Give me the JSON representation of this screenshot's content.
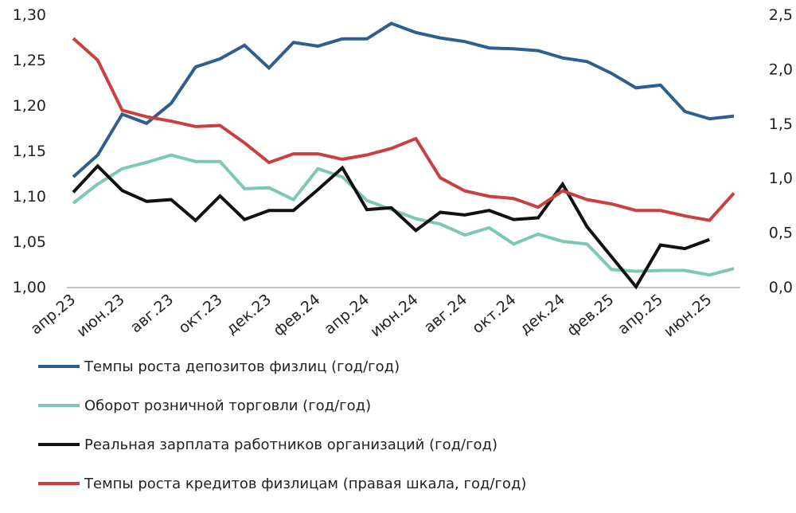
{
  "chart_data": {
    "type": "line",
    "x": [
      "апр.23",
      "май.23",
      "июн.23",
      "июл.23",
      "авг.23",
      "сен.23",
      "окт.23",
      "ноя.23",
      "дек.23",
      "янв.24",
      "фев.24",
      "мар.24",
      "апр.24",
      "май.24",
      "июн.24",
      "июл.24",
      "авг.24",
      "сен.24",
      "окт.24",
      "ноя.24",
      "дек.24",
      "янв.25",
      "фев.25",
      "мар.25",
      "апр.25",
      "май.25",
      "июн.25",
      "июл.25"
    ],
    "x_tick_labels": [
      "апр.23",
      "июн.23",
      "авг.23",
      "окт.23",
      "дек.23",
      "фев.24",
      "апр.24",
      "июн.24",
      "авг.24",
      "окт.24",
      "дек.24",
      "фев.25",
      "апр.25",
      "июн.25"
    ],
    "y_left": {
      "min": 1.0,
      "max": 1.3,
      "ticks": [
        "1,00",
        "1,05",
        "1,10",
        "1,15",
        "1,20",
        "1,25",
        "1,30"
      ]
    },
    "y_right": {
      "min": 0.0,
      "max": 2.5,
      "ticks": [
        "0,0",
        "0,5",
        "1,0",
        "1,5",
        "2,0",
        "2,5"
      ]
    },
    "grid": false,
    "legend_position": "bottom",
    "series": [
      {
        "name": "Темпы роста депозитов физлиц (год/год)",
        "color": "#2e5f8e",
        "axis": "left",
        "values": [
          1.121,
          1.145,
          1.19,
          1.18,
          1.202,
          1.242,
          1.251,
          1.266,
          1.241,
          1.269,
          1.265,
          1.273,
          1.273,
          1.29,
          1.28,
          1.274,
          1.27,
          1.263,
          1.262,
          1.26,
          1.252,
          1.248,
          1.235,
          1.219,
          1.222,
          1.193,
          1.185,
          1.188
        ]
      },
      {
        "name": "Оборот розничной торговли (год/год)",
        "color": "#7cc7b5",
        "axis": "left",
        "values": [
          1.092,
          1.113,
          1.13,
          1.137,
          1.145,
          1.138,
          1.138,
          1.108,
          1.109,
          1.096,
          1.13,
          1.121,
          1.095,
          1.085,
          1.075,
          1.069,
          1.057,
          1.065,
          1.047,
          1.058,
          1.05,
          1.047,
          1.019,
          1.017,
          1.018,
          1.018,
          1.013,
          1.02
        ]
      },
      {
        "name": "Реальная зарплата работников организаций (год/год)",
        "color": "#111111",
        "axis": "left",
        "values": [
          1.104,
          1.133,
          1.106,
          1.094,
          1.096,
          1.073,
          1.1,
          1.074,
          1.084,
          1.084,
          1.107,
          1.131,
          1.085,
          1.087,
          1.062,
          1.082,
          1.079,
          1.084,
          1.074,
          1.076,
          1.113,
          1.066,
          1.033,
          1.0,
          1.046,
          1.042,
          1.052,
          null
        ]
      },
      {
        "name": "Темпы роста кредитов физлицам (правая шкала, год/год)",
        "color": "#c94040",
        "axis": "right",
        "values": [
          2.28,
          2.08,
          1.62,
          1.56,
          1.52,
          1.47,
          1.48,
          1.32,
          1.14,
          1.22,
          1.22,
          1.17,
          1.21,
          1.27,
          1.36,
          1.0,
          0.88,
          0.83,
          0.81,
          0.73,
          0.88,
          0.8,
          0.76,
          0.7,
          0.7,
          0.65,
          0.61,
          0.86
        ]
      }
    ]
  }
}
